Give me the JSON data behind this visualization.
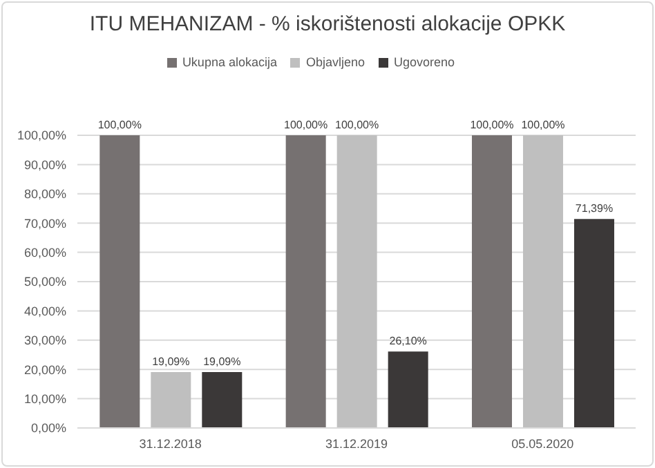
{
  "chart_data": {
    "type": "bar",
    "title": "ITU MEHANIZAM - % iskorištenosti alokacije OPKK",
    "categories": [
      "31.12.2018",
      "31.12.2019",
      "05.05.2020"
    ],
    "series": [
      {
        "name": "Ukupna alokacija",
        "color": "#767171",
        "values": [
          100,
          100,
          100
        ],
        "value_labels": [
          "100,00%",
          "100,00%",
          "100,00%"
        ]
      },
      {
        "name": "Objavljeno",
        "color": "#bfbfbf",
        "values": [
          19.09,
          100,
          100
        ],
        "value_labels": [
          "19,09%",
          "100,00%",
          "100,00%"
        ]
      },
      {
        "name": "Ugovoreno",
        "color": "#3b3838",
        "values": [
          19.09,
          26.1,
          71.39
        ],
        "value_labels": [
          "19,09%",
          "26,10%",
          "71,39%"
        ]
      }
    ],
    "ylim": [
      0,
      100
    ],
    "yticks": [
      {
        "value": 0,
        "label": "0,00%"
      },
      {
        "value": 10,
        "label": "10,00%"
      },
      {
        "value": 20,
        "label": "20,00%"
      },
      {
        "value": 30,
        "label": "30,00%"
      },
      {
        "value": 40,
        "label": "40,00%"
      },
      {
        "value": 50,
        "label": "50,00%"
      },
      {
        "value": 60,
        "label": "60,00%"
      },
      {
        "value": 70,
        "label": "70,00%"
      },
      {
        "value": 80,
        "label": "80,00%"
      },
      {
        "value": 90,
        "label": "90,00%"
      },
      {
        "value": 100,
        "label": "100,00%"
      }
    ],
    "grid": "y",
    "legend": "top"
  }
}
